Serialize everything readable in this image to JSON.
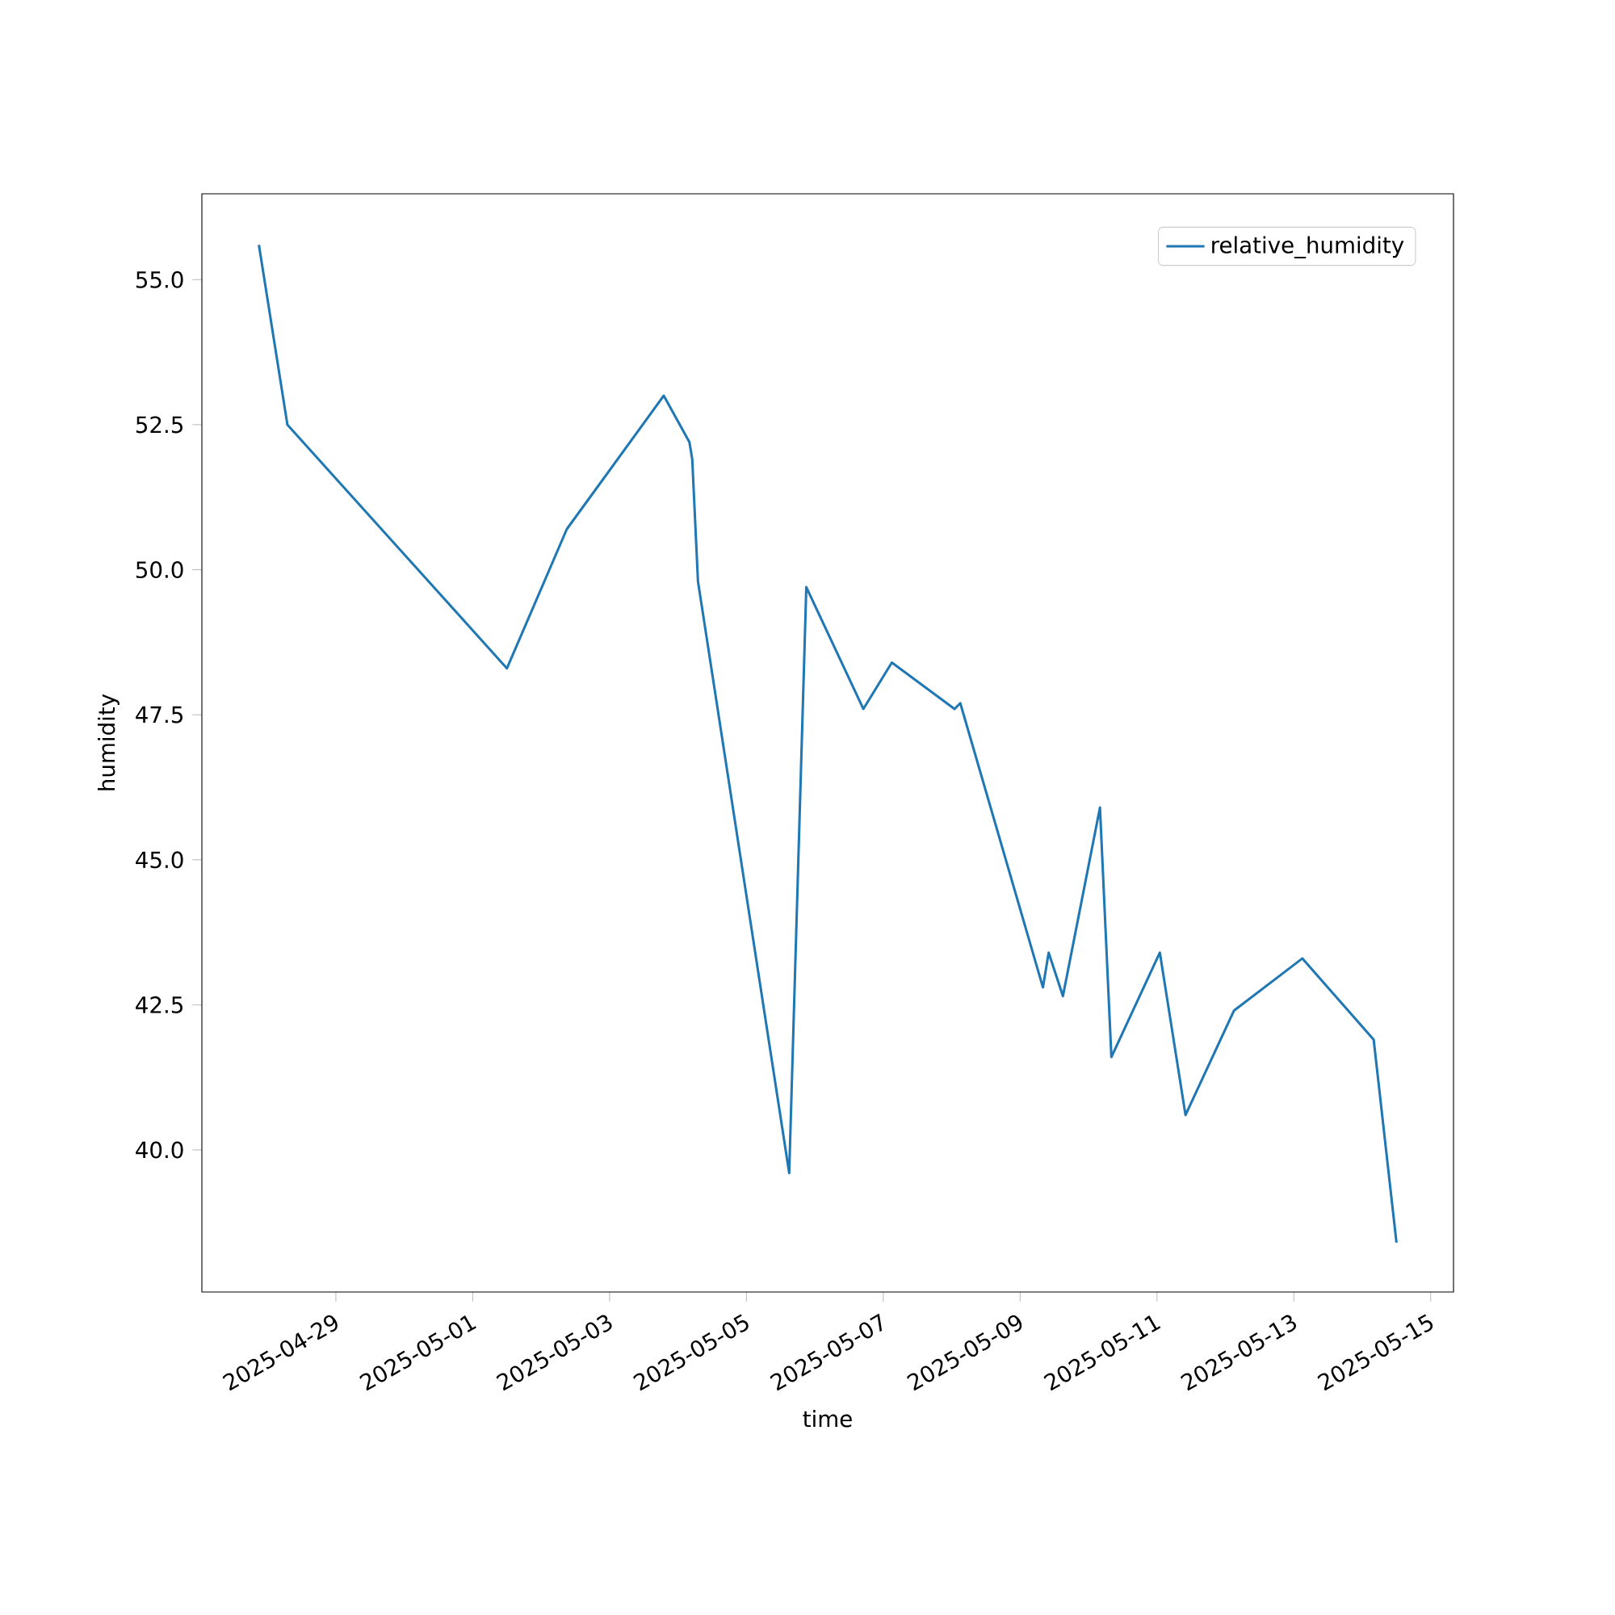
{
  "chart_data": {
    "type": "line",
    "xlabel": "time",
    "ylabel": "humidity",
    "legend": "top right",
    "grid": false,
    "xlim": [
      "2025-04-27T01:00",
      "2025-05-15T08:00"
    ],
    "ylim": [
      37.55,
      56.48
    ],
    "xticks": [
      "2025-04-29",
      "2025-05-01",
      "2025-05-03",
      "2025-05-05",
      "2025-05-07",
      "2025-05-09",
      "2025-05-11",
      "2025-05-13",
      "2025-05-15"
    ],
    "yticks": [
      {
        "value": 40,
        "label": "40.0"
      },
      42.5,
      {
        "value": 45,
        "label": "45.0"
      },
      47.5,
      {
        "value": 50,
        "label": "50.0"
      },
      52.5,
      {
        "value": 55,
        "label": "55.0"
      }
    ],
    "series": [
      {
        "name": "relative_humidity",
        "color": "#1f77b4",
        "x": [
          "2025-04-27T21:00",
          "2025-04-28T07:00",
          "2025-05-01T12:00",
          "2025-05-02T09:00",
          "2025-05-03T19:00",
          "2025-05-04T04:00",
          "2025-05-04T05:00",
          "2025-05-04T07:00",
          "2025-05-05T15:00",
          "2025-05-05T21:00",
          "2025-05-06T17:00",
          "2025-05-07T03:00",
          "2025-05-08T01:00",
          "2025-05-08T03:00",
          "2025-05-09T08:00",
          "2025-05-09T10:00",
          "2025-05-09T15:00",
          "2025-05-10T04:00",
          "2025-05-10T08:00",
          "2025-05-11T01:00",
          "2025-05-11T10:00",
          "2025-05-12T03:00",
          "2025-05-13T03:00",
          "2025-05-14T04:00",
          "2025-05-14T12:00"
        ],
        "values": [
          55.6,
          52.5,
          48.3,
          50.7,
          53.0,
          52.2,
          51.9,
          49.8,
          39.6,
          49.7,
          47.6,
          48.4,
          47.6,
          47.7,
          42.8,
          43.4,
          42.65,
          45.9,
          41.6,
          43.4,
          40.6,
          42.4,
          43.3,
          41.9,
          38.4
        ]
      }
    ]
  }
}
